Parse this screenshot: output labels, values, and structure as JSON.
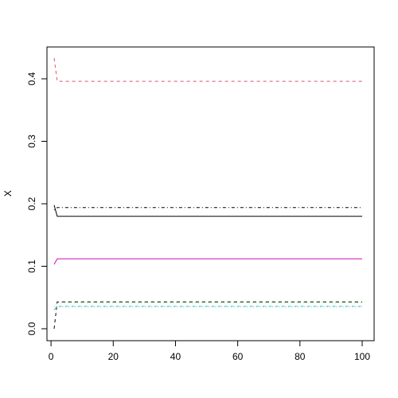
{
  "chart_data": {
    "type": "line",
    "title": "",
    "xlabel": "",
    "ylabel": "X",
    "xlim": [
      1,
      100
    ],
    "ylim": [
      0,
      0.43
    ],
    "x_ticks": [
      "0",
      "20",
      "40",
      "60",
      "80",
      "100"
    ],
    "y_ticks": [
      "0.0",
      "0.1",
      "0.2",
      "0.3",
      "0.4"
    ],
    "grid": false,
    "legend": "none",
    "series": [
      {
        "color": "#DF536B",
        "dash": "dashed",
        "values": [
          [
            1,
            0.433
          ],
          [
            2,
            0.396
          ],
          [
            100,
            0.396
          ]
        ]
      },
      {
        "color": "#000000",
        "dash": "dotdash",
        "values": [
          [
            1,
            0.19
          ],
          [
            2,
            0.194
          ],
          [
            100,
            0.194
          ]
        ]
      },
      {
        "color": "#000000",
        "dash": "solid",
        "values": [
          [
            1,
            0.198
          ],
          [
            2,
            0.18
          ],
          [
            100,
            0.18
          ]
        ]
      },
      {
        "color": "#CD0BBC",
        "dash": "solid",
        "values": [
          [
            1,
            0.103
          ],
          [
            2,
            0.112
          ],
          [
            100,
            0.112
          ]
        ]
      },
      {
        "color": "#000000",
        "dash": "dashed",
        "values": [
          [
            1,
            0.0
          ],
          [
            2,
            0.043
          ],
          [
            100,
            0.043
          ]
        ]
      },
      {
        "color": "#61D04F",
        "dash": "dotted",
        "values": [
          [
            1,
            0.035
          ],
          [
            2,
            0.042
          ],
          [
            100,
            0.042
          ]
        ]
      },
      {
        "color": "#28E2E5",
        "dash": "dashed",
        "values": [
          [
            1,
            0.03
          ],
          [
            2,
            0.036
          ],
          [
            100,
            0.036
          ]
        ]
      },
      {
        "color": "#9E9E9E",
        "dash": "dotted",
        "values": [
          [
            1,
            0.03
          ],
          [
            2,
            0.035
          ],
          [
            100,
            0.035
          ]
        ]
      }
    ]
  }
}
